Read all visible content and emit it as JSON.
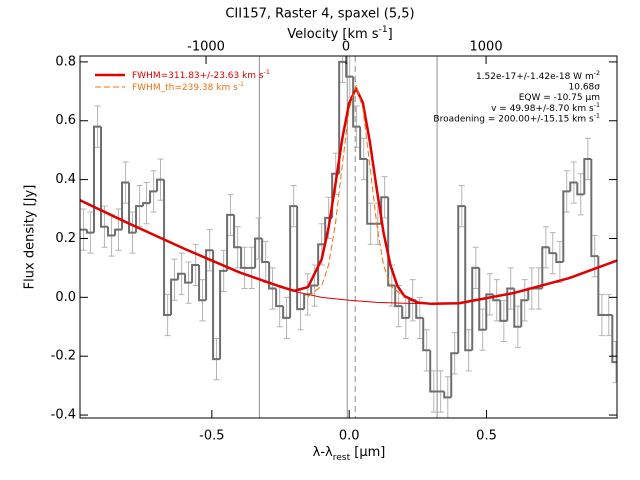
{
  "chart_data": {
    "type": "step",
    "title": "CII157, Raster 4, spaxel (5,5)",
    "x2label": {
      "text": "Velocity [km s",
      "sup": "-1",
      "after": "]"
    },
    "xlabel": {
      "text": "λ-λ",
      "sub": "rest",
      "after": " [μm]"
    },
    "ylabel": "Flux density [Jy]",
    "color": "#6e6e6e",
    "error_color": "#b4b4b4",
    "x": [
      -0.967,
      -0.942,
      -0.916,
      -0.891,
      -0.865,
      -0.84,
      -0.814,
      -0.789,
      -0.763,
      -0.738,
      -0.712,
      -0.687,
      -0.661,
      -0.636,
      -0.61,
      -0.585,
      -0.559,
      -0.534,
      -0.508,
      -0.483,
      -0.457,
      -0.432,
      -0.406,
      -0.381,
      -0.355,
      -0.33,
      -0.304,
      -0.279,
      -0.253,
      -0.228,
      -0.202,
      -0.177,
      -0.151,
      -0.126,
      -0.1,
      -0.075,
      -0.049,
      -0.024,
      0.002,
      0.027,
      0.053,
      0.078,
      0.104,
      0.129,
      0.155,
      0.18,
      0.206,
      0.231,
      0.257,
      0.282,
      0.308,
      0.333,
      0.359,
      0.384,
      0.41,
      0.435,
      0.461,
      0.486,
      0.512,
      0.537,
      0.563,
      0.588,
      0.614,
      0.639,
      0.665,
      0.69,
      0.716,
      0.741,
      0.767,
      0.792,
      0.818,
      0.843,
      0.869,
      0.894,
      0.92,
      0.945,
      0.971
    ],
    "values": [
      0.23,
      0.22,
      0.58,
      0.24,
      0.21,
      0.23,
      0.39,
      0.22,
      0.31,
      0.32,
      0.36,
      0.4,
      -0.06,
      0.06,
      0.08,
      0.05,
      0.11,
      -0.01,
      0.16,
      -0.21,
      0.09,
      0.28,
      0.17,
      0.1,
      0.1,
      0.2,
      0.12,
      0.03,
      -0.03,
      -0.07,
      0.31,
      -0.04,
      0.01,
      0.04,
      0.18,
      0.27,
      0.42,
      0.8,
      0.75,
      0.58,
      0.47,
      0.25,
      0.25,
      0.34,
      0.04,
      -0.03,
      -0.07,
      -0.01,
      -0.07,
      -0.18,
      -0.32,
      -0.32,
      -0.34,
      -0.19,
      0.31,
      -0.18,
      0.1,
      -0.11,
      0.01,
      -0.01,
      -0.08,
      0.03,
      -0.1,
      -0.01,
      0.03,
      0.03,
      0.17,
      0.15,
      0.12,
      0.36,
      0.39,
      0.35,
      0.47,
      0.14,
      -0.06,
      -0.06,
      -0.22
    ],
    "error": 0.07,
    "xlim": [
      -0.98,
      0.975
    ],
    "ylim": [
      -0.41,
      0.82
    ],
    "xticks": [
      -0.5,
      {
        "value": 0,
        "label": "0.0"
      },
      0.5
    ],
    "yticks": [
      -0.4,
      -0.2,
      {
        "value": 0,
        "label": "0.0"
      },
      0.2,
      0.4,
      0.6,
      0.8
    ],
    "x2lim": [
      -1900,
      1935
    ],
    "x2ticks": [
      -1000,
      0,
      1000
    ],
    "vlines": [
      -0.327,
      -0.007,
      0.32
    ],
    "vline_color": "#909090",
    "vlines_dashed": [
      0.022
    ],
    "curves": [
      {
        "color": "#e00000",
        "width": 1,
        "x": [
          -0.98,
          -0.8,
          -0.6,
          -0.4,
          -0.2,
          -0.1,
          0,
          0.1,
          0.2,
          0.3,
          0.4,
          0.6,
          0.8,
          0.975
        ],
        "values": [
          0.33,
          0.25,
          0.165,
          0.085,
          0.02,
          0.0,
          -0.01,
          -0.017,
          -0.02,
          -0.022,
          -0.02,
          0.015,
          0.065,
          0.125
        ]
      },
      {
        "label": {
          "text": "FWHM=311.83+/-23.63 km s",
          "sup": "-1"
        },
        "color": "#e00000",
        "width": 2.5,
        "x": [
          -0.98,
          -0.8,
          -0.6,
          -0.4,
          -0.25,
          -0.2,
          -0.15,
          -0.1,
          -0.075,
          -0.05,
          -0.025,
          0,
          0.025,
          0.05,
          0.075,
          0.1,
          0.125,
          0.15,
          0.175,
          0.2,
          0.25,
          0.3,
          0.4,
          0.6,
          0.8,
          0.975
        ],
        "values": [
          0.33,
          0.25,
          0.165,
          0.085,
          0.036,
          0.022,
          0.035,
          0.13,
          0.237,
          0.385,
          0.54,
          0.66,
          0.71,
          0.66,
          0.53,
          0.37,
          0.22,
          0.11,
          0.04,
          0.005,
          -0.018,
          -0.022,
          -0.02,
          0.015,
          0.065,
          0.125
        ]
      },
      {
        "label": {
          "text": "FWHM_th=239.38 km s",
          "sup": "-1"
        },
        "color": "#f07010",
        "width": 1,
        "dashed": true,
        "x": [
          -0.15,
          -0.1,
          -0.075,
          -0.05,
          -0.025,
          0,
          0.025,
          0.05,
          0.075,
          0.1,
          0.125,
          0.15,
          0.2
        ],
        "values": [
          0.002,
          0.039,
          0.11,
          0.25,
          0.45,
          0.64,
          0.72,
          0.64,
          0.45,
          0.25,
          0.11,
          0.039,
          0.002
        ]
      }
    ],
    "annotations": [
      {
        "text": "1.52e-17+/-1.42e-18 W m",
        "sup": "-2"
      },
      {
        "text": "10.68σ"
      },
      {
        "text": "EQW = -10.75 μm"
      },
      {
        "text": "v = 49.98+/-8.70 km s",
        "sup": "-1"
      },
      {
        "text": "Broadening = 200.00+/-15.15 km s",
        "sup": "-1"
      }
    ]
  }
}
